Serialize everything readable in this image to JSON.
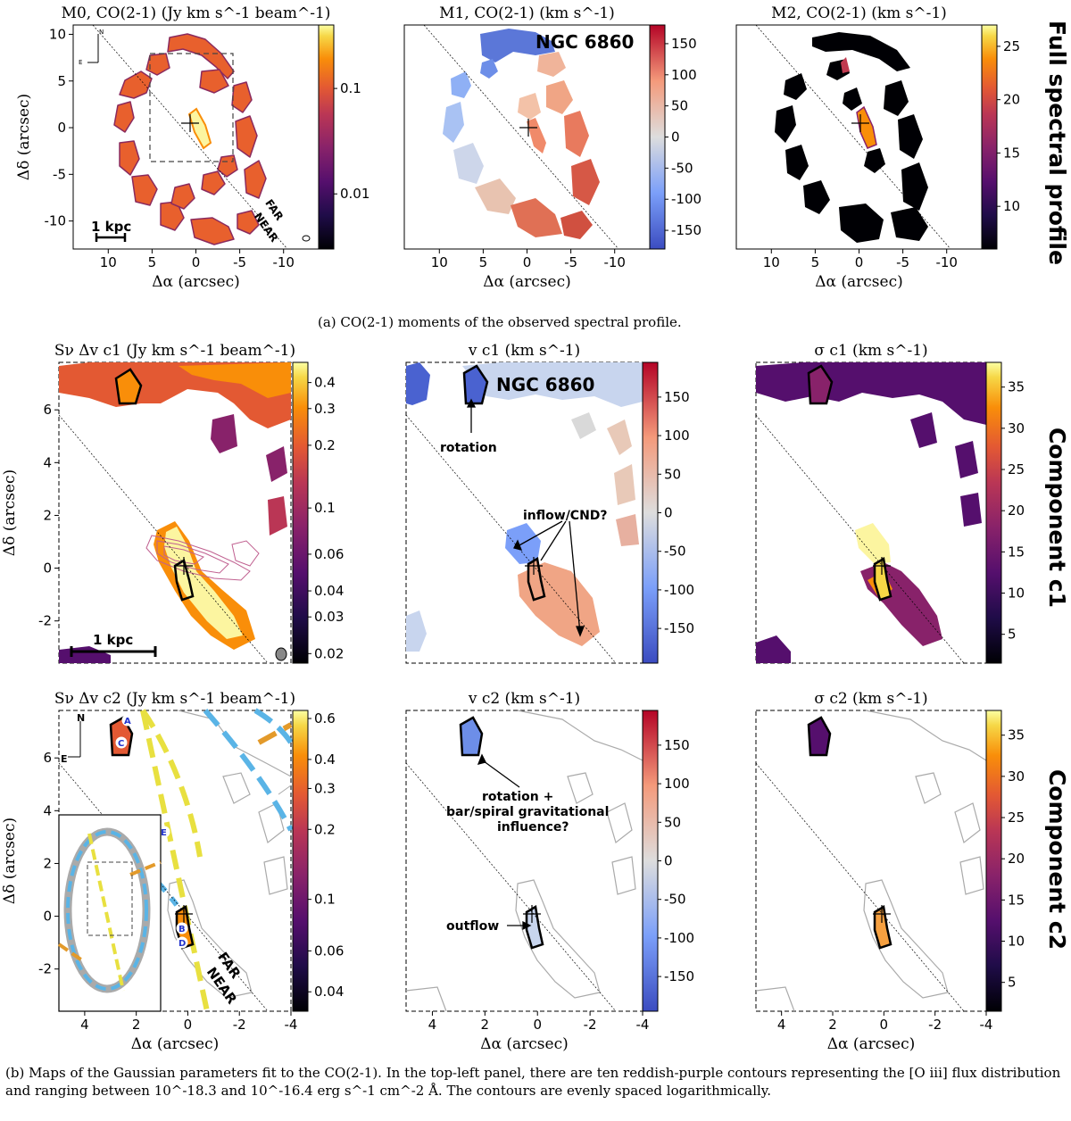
{
  "figure": {
    "galaxy": "NGC 6860",
    "row_labels": [
      "Full spectral profile",
      "Component c1",
      "Component c2"
    ],
    "caption_a": "(a) CO(2-1) moments of the observed spectral profile.",
    "caption_b": "(b) Maps of the Gaussian parameters fit to the CO(2-1). In the top-left panel, there are ten reddish-purple contours representing the [O iii] flux distribution and ranging between 10^-18.3 and 10^-16.4 erg s^-1 cm^-2 Å. The contours are evenly spaced logarithmically.",
    "compass": {
      "north": "N",
      "east": "E"
    },
    "side_labels": {
      "far": "FAR",
      "near": "NEAR"
    },
    "scale_bar": "1 kpc",
    "region_labels": [
      "A",
      "B",
      "C",
      "D",
      "E"
    ]
  },
  "chart_data": [
    {
      "type": "heatmap",
      "id": "M0",
      "title": "M0, CO(2-1) (Jy km s^-1 beam^-1)",
      "xlabel": "Δα (arcsec)",
      "ylabel": "Δδ (arcsec)",
      "xlim": [
        14,
        -14
      ],
      "ylim": [
        -13,
        11
      ],
      "xticks": [
        10,
        5,
        0,
        -5,
        -10
      ],
      "yticks": [
        10,
        5,
        0,
        -5,
        -10
      ],
      "colorbar": {
        "scale": "log",
        "range": [
          0.003,
          0.4
        ],
        "ticks": [
          0.1,
          0.01
        ],
        "tick_labels": [
          "0.1",
          "0.01"
        ],
        "cmap": "inferno"
      }
    },
    {
      "type": "heatmap",
      "id": "M1",
      "title": "M1, CO(2-1) (km s^-1)",
      "xlabel": "Δα (arcsec)",
      "xlim": [
        14,
        -14
      ],
      "ylim": [
        -13,
        11
      ],
      "xticks": [
        10,
        5,
        0,
        -5,
        -10
      ],
      "colorbar": {
        "scale": "linear",
        "range": [
          -180,
          180
        ],
        "ticks": [
          150,
          100,
          50,
          0,
          -50,
          -100,
          -150
        ],
        "cmap": "coolwarm"
      }
    },
    {
      "type": "heatmap",
      "id": "M2",
      "title": "M2, CO(2-1) (km s^-1)",
      "xlabel": "Δα (arcsec)",
      "xlim": [
        14,
        -14
      ],
      "ylim": [
        -13,
        11
      ],
      "xticks": [
        10,
        5,
        0,
        -5,
        -10
      ],
      "colorbar": {
        "scale": "linear",
        "range": [
          6,
          27
        ],
        "ticks": [
          25,
          20,
          15,
          10
        ],
        "cmap": "inferno"
      }
    },
    {
      "type": "heatmap",
      "id": "S1",
      "title": "Sν Δv c1 (Jy km s^-1 beam^-1)",
      "ylabel": "Δδ (arcsec)",
      "xlim": [
        5,
        -4
      ],
      "ylim": [
        -3.6,
        7.8
      ],
      "yticks": [
        6,
        4,
        2,
        0,
        -2
      ],
      "colorbar": {
        "scale": "log",
        "range": [
          0.018,
          0.5
        ],
        "ticks": [
          0.4,
          0.3,
          0.2,
          0.1,
          0.06,
          0.04,
          0.03,
          0.02
        ],
        "tick_labels": [
          "0.4",
          "0.3",
          "0.2",
          "0.1",
          "0.06",
          "0.04",
          "0.03",
          "0.02"
        ],
        "cmap": "inferno"
      }
    },
    {
      "type": "heatmap",
      "id": "V1",
      "title": "v c1 (km s^-1)",
      "xlim": [
        5,
        -4
      ],
      "ylim": [
        -3.6,
        7.8
      ],
      "annotations": [
        "rotation",
        "inflow/CND?"
      ],
      "colorbar": {
        "scale": "linear",
        "range": [
          -195,
          195
        ],
        "ticks": [
          150,
          100,
          50,
          0,
          -50,
          -100,
          -150
        ],
        "cmap": "coolwarm"
      }
    },
    {
      "type": "heatmap",
      "id": "SG1",
      "title": "σ c1 (km s^-1)",
      "xlim": [
        5,
        -4
      ],
      "ylim": [
        -3.6,
        7.8
      ],
      "colorbar": {
        "scale": "linear",
        "range": [
          1.5,
          38
        ],
        "ticks": [
          35,
          30,
          25,
          20,
          15,
          10,
          5
        ],
        "cmap": "inferno"
      }
    },
    {
      "type": "heatmap",
      "id": "S2",
      "title": "Sν Δv c2 (Jy km s^-1 beam^-1)",
      "xlabel": "Δα (arcsec)",
      "ylabel": "Δδ (arcsec)",
      "xlim": [
        5,
        -4
      ],
      "ylim": [
        -3.6,
        7.8
      ],
      "xticks": [
        4,
        2,
        0,
        -2,
        -4
      ],
      "yticks": [
        6,
        4,
        2,
        0,
        -2
      ],
      "colorbar": {
        "scale": "log",
        "range": [
          0.033,
          0.65
        ],
        "ticks": [
          0.6,
          0.4,
          0.3,
          0.2,
          0.1,
          0.06,
          0.04
        ],
        "tick_labels": [
          "0.6",
          "0.4",
          "0.3",
          "0.2",
          "0.1",
          "0.06",
          "0.04"
        ],
        "cmap": "inferno"
      }
    },
    {
      "type": "heatmap",
      "id": "V2",
      "title": "v c2 (km s^-1)",
      "xlabel": "Δα (arcsec)",
      "xlim": [
        5,
        -4
      ],
      "ylim": [
        -3.6,
        7.8
      ],
      "xticks": [
        4,
        2,
        0,
        -2,
        -4
      ],
      "annotations": [
        "rotation +",
        "bar/spiral gravitational",
        "influence?",
        "outflow"
      ],
      "colorbar": {
        "scale": "linear",
        "range": [
          -195,
          195
        ],
        "ticks": [
          150,
          100,
          50,
          0,
          -50,
          -100,
          -150
        ],
        "cmap": "coolwarm"
      }
    },
    {
      "type": "heatmap",
      "id": "SG2",
      "title": "σ c2 (km s^-1)",
      "xlabel": "Δα (arcsec)",
      "xlim": [
        5,
        -4
      ],
      "ylim": [
        -3.6,
        7.8
      ],
      "xticks": [
        4,
        2,
        0,
        -2,
        -4
      ],
      "colorbar": {
        "scale": "linear",
        "range": [
          1.5,
          38
        ],
        "ticks": [
          35,
          30,
          25,
          20,
          15,
          10,
          5
        ],
        "cmap": "inferno"
      }
    }
  ]
}
